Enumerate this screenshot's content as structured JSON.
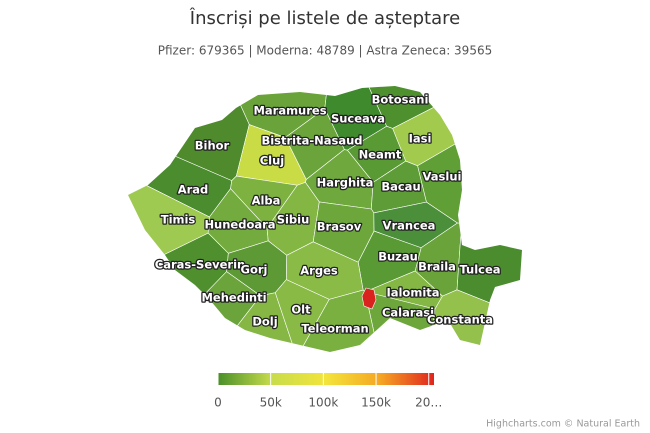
{
  "title": "Înscriși pe listele de așteptare",
  "subtitle": "Pfizer: 679365 | Moderna: 48789 | Astra Zeneca: 39565",
  "counties": [
    {
      "name": "Maramures",
      "color": "#6aa33a"
    },
    {
      "name": "Botosani",
      "color": "#4e8f2e"
    },
    {
      "name": "Suceava",
      "color": "#3f8a2c"
    },
    {
      "name": "Iasi",
      "color": "#a2cb4e"
    },
    {
      "name": "Bihor",
      "color": "#4f8b2c"
    },
    {
      "name": "Bistrita-Nasaud",
      "color": "#6aa43a"
    },
    {
      "name": "Neamt",
      "color": "#5a9a35"
    },
    {
      "name": "Cluj",
      "color": "#c9dc45"
    },
    {
      "name": "Vaslui",
      "color": "#5f9f36"
    },
    {
      "name": "Harghita",
      "color": "#6fa93d"
    },
    {
      "name": "Bacau",
      "color": "#5d9c36"
    },
    {
      "name": "Arad",
      "color": "#4b8c2e"
    },
    {
      "name": "Alba",
      "color": "#7eb240"
    },
    {
      "name": "Timis",
      "color": "#9fca52"
    },
    {
      "name": "Hunedoara",
      "color": "#74ab3e"
    },
    {
      "name": "Sibiu",
      "color": "#83b643"
    },
    {
      "name": "Brasov",
      "color": "#6da73c"
    },
    {
      "name": "Vrancea",
      "color": "#4b8f3a"
    },
    {
      "name": "Buzau",
      "color": "#5a9a35"
    },
    {
      "name": "Braila",
      "color": "#6aa33a"
    },
    {
      "name": "Tulcea",
      "color": "#4b8c2e"
    },
    {
      "name": "Caras-Severin",
      "color": "#4f8f2e"
    },
    {
      "name": "Gorj",
      "color": "#5d9a35"
    },
    {
      "name": "Arges",
      "color": "#8abb47"
    },
    {
      "name": "Ialomita",
      "color": "#84b744"
    },
    {
      "name": "Mehedinti",
      "color": "#6aa43a"
    },
    {
      "name": "Olt",
      "color": "#89ba45"
    },
    {
      "name": "Calarasi",
      "color": "#6da73c"
    },
    {
      "name": "Constanta",
      "color": "#93c14b"
    },
    {
      "name": "Dolj",
      "color": "#86b745"
    },
    {
      "name": "Teleorman",
      "color": "#7ab03f"
    }
  ],
  "legend": {
    "lim": [
      0,
      205000
    ],
    "ticks": [
      0,
      {
        "value": 50000,
        "label": "50k"
      },
      {
        "value": 100000,
        "label": "100k"
      },
      {
        "value": 150000,
        "label": "150k"
      },
      {
        "value": 200000,
        "label": "20…"
      }
    ],
    "stops": [
      "#4a8f2a",
      "#c8dc4c",
      "#f3e43a",
      "#f5a623",
      "#e0251f"
    ]
  },
  "credits": "Highcharts.com © Natural Earth"
}
